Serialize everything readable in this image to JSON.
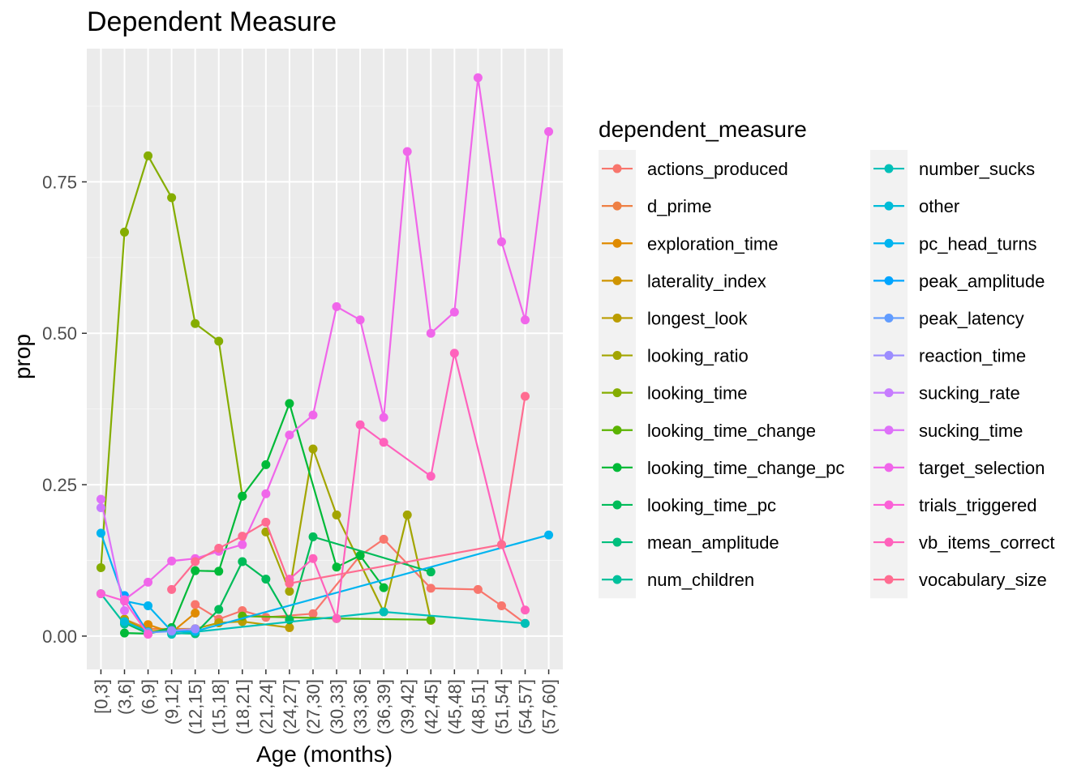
{
  "chart_data": {
    "type": "line",
    "title": "Dependent Measure",
    "xlabel": "Age (months)",
    "ylabel": "prop",
    "ylim": [
      -0.055,
      0.97
    ],
    "yticks": [
      0,
      0.25,
      0.5,
      0.75
    ],
    "ytick_labels": [
      "0.00",
      "0.25",
      "0.50",
      "0.75"
    ],
    "grid": true,
    "legend_title": "dependent_measure",
    "legend_position": "right",
    "categories": [
      "[0,3]",
      "(3,6]",
      "(6,9]",
      "(9,12]",
      "(12,15]",
      "(15,18]",
      "(18,21]",
      "(21,24]",
      "(24,27]",
      "(27,30]",
      "(30,33]",
      "(33,36]",
      "(36,39]",
      "(39,42]",
      "(42,45]",
      "(45,48]",
      "(48,51]",
      "(51,54]",
      "(54,57]",
      "(57,60]"
    ],
    "series": [
      {
        "name": "actions_produced",
        "color": "#F8766D",
        "points": [
          [
            "(12,15]",
            0.052
          ],
          [
            "(15,18]",
            0.028
          ],
          [
            "(18,21]",
            0.042
          ],
          [
            "(21,24]",
            0.031
          ],
          [
            "(27,30]",
            0.037
          ],
          [
            "(33,36]",
            0.133
          ],
          [
            "(36,39]",
            0.16
          ],
          [
            "(42,45]",
            0.079
          ],
          [
            "(48,51]",
            0.077
          ],
          [
            "(51,54]",
            0.05
          ],
          [
            "(54,57]",
            0.021
          ]
        ]
      },
      {
        "name": "d_prime",
        "color": "#EE8045",
        "points": [
          [
            "(3,6]",
            0.028
          ],
          [
            "(6,9]",
            0.012
          ],
          [
            "(12,15]",
            0.012
          ]
        ]
      },
      {
        "name": "exploration_time",
        "color": "#E08B00",
        "points": [
          [
            "(6,9]",
            0.019
          ],
          [
            "(9,12]",
            0.006
          ],
          [
            "(12,15]",
            0.038
          ]
        ]
      },
      {
        "name": "laterality_index",
        "color": "#CF9400",
        "points": [
          [
            "(9,12]",
            0.008
          ],
          [
            "(12,15]",
            0.012
          ]
        ]
      },
      {
        "name": "longest_look",
        "color": "#BB9D00",
        "points": [
          [
            "(3,6]",
            0.028
          ],
          [
            "(6,9]",
            0.008
          ],
          [
            "(12,15]",
            0.012
          ],
          [
            "(15,18]",
            0.022
          ],
          [
            "(18,21]",
            0.024
          ],
          [
            "(24,27]",
            0.014
          ]
        ]
      },
      {
        "name": "looking_ratio",
        "color": "#A3A500",
        "points": [
          [
            "(21,24]",
            0.172
          ],
          [
            "(24,27]",
            0.074
          ],
          [
            "(27,30]",
            0.309
          ],
          [
            "(30,33]",
            0.2
          ],
          [
            "(36,39]",
            0.04
          ],
          [
            "(39,42]",
            0.2
          ],
          [
            "(42,45]",
            0.026
          ]
        ]
      },
      {
        "name": "looking_time",
        "color": "#85AD00",
        "points": [
          [
            "[0,3]",
            0.113
          ],
          [
            "(3,6]",
            0.667
          ],
          [
            "(6,9]",
            0.793
          ],
          [
            "(9,12]",
            0.724
          ],
          [
            "(12,15]",
            0.516
          ],
          [
            "(15,18]",
            0.487
          ],
          [
            "(18,21]",
            0.231
          ]
        ]
      },
      {
        "name": "looking_time_change",
        "color": "#5BB300",
        "points": [
          [
            "(18,21]",
            0.033
          ],
          [
            "(30,33]",
            0.029
          ],
          [
            "(42,45]",
            0.027
          ]
        ]
      },
      {
        "name": "looking_time_change_pc",
        "color": "#00BA38",
        "points": [
          [
            "(3,6]",
            0.005
          ],
          [
            "(6,9]",
            0.004
          ],
          [
            "(9,12]",
            0.014
          ],
          [
            "(12,15]",
            0.108
          ],
          [
            "(15,18]",
            0.107
          ],
          [
            "(18,21]",
            0.231
          ],
          [
            "(21,24]",
            0.283
          ],
          [
            "(24,27]",
            0.384
          ],
          [
            "(30,33]",
            0.114
          ],
          [
            "(33,36]",
            0.133
          ],
          [
            "(36,39]",
            0.08
          ]
        ]
      },
      {
        "name": "looking_time_pc",
        "color": "#00BC59",
        "points": [
          [
            "(3,6]",
            0.022
          ],
          [
            "(6,9]",
            0.004
          ],
          [
            "(9,12]",
            0.012
          ],
          [
            "(12,15]",
            0.004
          ],
          [
            "(15,18]",
            0.044
          ],
          [
            "(18,21]",
            0.123
          ],
          [
            "(21,24]",
            0.094
          ],
          [
            "(24,27]",
            0.027
          ],
          [
            "(27,30]",
            0.164
          ],
          [
            "(42,45]",
            0.106
          ]
        ]
      },
      {
        "name": "mean_amplitude",
        "color": "#00BF7D",
        "points": [
          [
            "(9,12]",
            0.005
          ],
          [
            "(12,15]",
            0.004
          ]
        ]
      },
      {
        "name": "num_children",
        "color": "#00C19C",
        "points": [
          [
            "[0,3]",
            0.07
          ],
          [
            "(3,6]",
            0.02
          ]
        ]
      },
      {
        "name": "number_sucks",
        "color": "#00C0B8",
        "points": [
          [
            "(9,12]",
            0.003
          ],
          [
            "(12,15]",
            0.007
          ],
          [
            "(36,39]",
            0.04
          ],
          [
            "(54,57]",
            0.021
          ]
        ]
      },
      {
        "name": "other",
        "color": "#00BCD8",
        "points": [
          [
            "(3,6]",
            0.024
          ],
          [
            "(6,9]",
            0.007
          ]
        ]
      },
      {
        "name": "pc_head_turns",
        "color": "#00B4F0",
        "points": [
          [
            "[0,3]",
            0.17
          ],
          [
            "(3,6]",
            0.058
          ],
          [
            "(6,9]",
            0.05
          ],
          [
            "(9,12]",
            0.008
          ],
          [
            "(12,15]",
            0.008
          ],
          [
            "(57,60]",
            0.167
          ]
        ]
      },
      {
        "name": "peak_amplitude",
        "color": "#00A5FF",
        "points": [
          [
            "(3,6]",
            0.067
          ],
          [
            "(6,9]",
            0.005
          ]
        ]
      },
      {
        "name": "peak_latency",
        "color": "#619CFF",
        "points": [
          [
            "(6,9]",
            0.006
          ],
          [
            "(9,12]",
            0.008
          ]
        ]
      },
      {
        "name": "reaction_time",
        "color": "#9C8DFF",
        "points": [
          [
            "(9,12]",
            0.009
          ],
          [
            "(12,15]",
            0.012
          ]
        ]
      },
      {
        "name": "sucking_rate",
        "color": "#C77CFF",
        "points": [
          [
            "[0,3]",
            0.212
          ]
        ]
      },
      {
        "name": "sucking_time",
        "color": "#DE71F9",
        "points": [
          [
            "[0,3]",
            0.226
          ],
          [
            "(3,6]",
            0.042
          ]
        ]
      },
      {
        "name": "target_selection",
        "color": "#F066EA",
        "points": [
          [
            "(3,6]",
            0.06
          ],
          [
            "(6,9]",
            0.089
          ],
          [
            "(9,12]",
            0.124
          ],
          [
            "(12,15]",
            0.128
          ],
          [
            "(15,18]",
            0.14
          ],
          [
            "(18,21]",
            0.151
          ],
          [
            "(21,24]",
            0.235
          ],
          [
            "(24,27]",
            0.332
          ],
          [
            "(27,30]",
            0.365
          ],
          [
            "(30,33]",
            0.544
          ],
          [
            "(33,36]",
            0.522
          ],
          [
            "(36,39]",
            0.361
          ],
          [
            "(39,42]",
            0.8
          ],
          [
            "(42,45]",
            0.5
          ],
          [
            "(45,48]",
            0.535
          ],
          [
            "(48,51]",
            0.922
          ],
          [
            "(51,54]",
            0.651
          ],
          [
            "(54,57]",
            0.522
          ],
          [
            "(57,60]",
            0.833
          ]
        ]
      },
      {
        "name": "trials_triggered",
        "color": "#FB61D7",
        "points": [
          [
            "[0,3]",
            0.07
          ],
          [
            "(3,6]",
            0.058
          ],
          [
            "(6,9]",
            0.003
          ]
        ]
      },
      {
        "name": "vb_items_correct",
        "color": "#FF62BC",
        "points": [
          [
            "(24,27]",
            0.094
          ],
          [
            "(27,30]",
            0.128
          ],
          [
            "(30,33]",
            0.029
          ],
          [
            "(33,36]",
            0.349
          ],
          [
            "(36,39]",
            0.32
          ],
          [
            "(42,45]",
            0.264
          ],
          [
            "(45,48]",
            0.467
          ],
          [
            "(51,54]",
            0.151
          ],
          [
            "(54,57]",
            0.043
          ]
        ]
      },
      {
        "name": "vocabulary_size",
        "color": "#FF6C91",
        "points": [
          [
            "(9,12]",
            0.077
          ],
          [
            "(12,15]",
            0.123
          ],
          [
            "(15,18]",
            0.145
          ],
          [
            "(18,21]",
            0.165
          ],
          [
            "(21,24]",
            0.188
          ],
          [
            "(24,27]",
            0.087
          ],
          [
            "(51,54]",
            0.151
          ],
          [
            "(54,57]",
            0.396
          ]
        ]
      }
    ]
  }
}
